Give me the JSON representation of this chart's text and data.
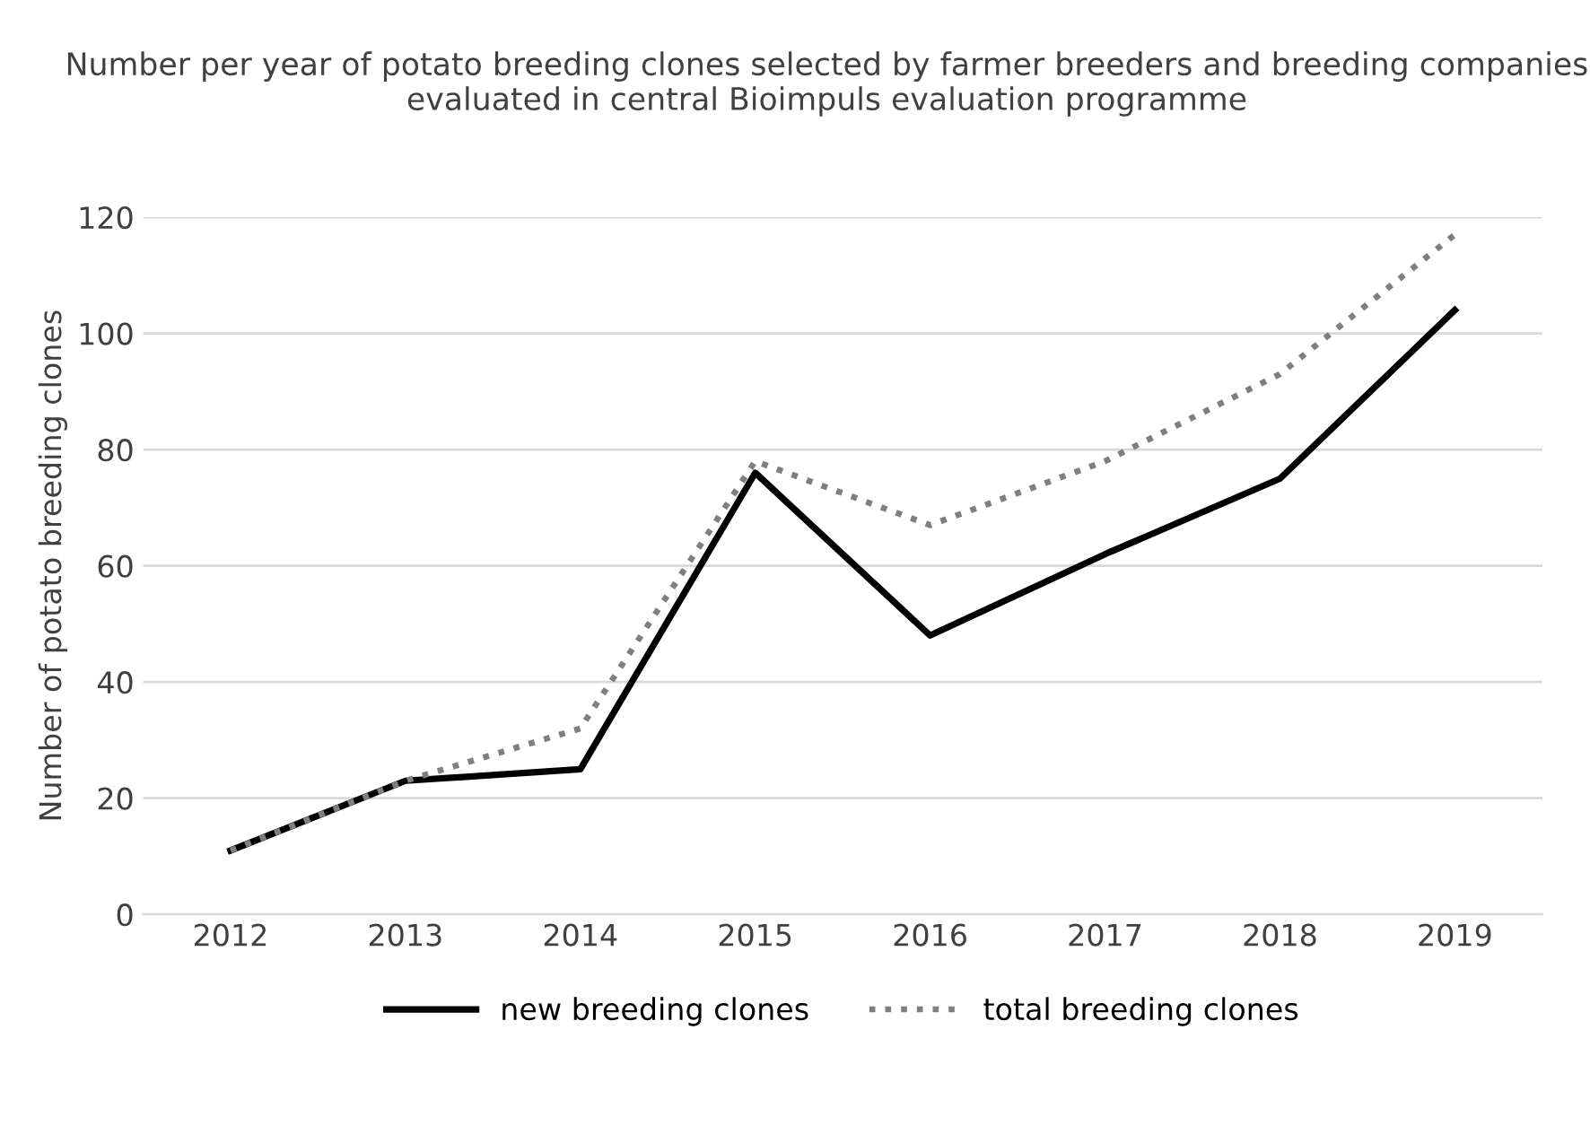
{
  "chart_data": {
    "type": "line",
    "title": "Number per year of potato breeding clones selected by farmer breeders and breeding companies evaluated in central Bioimpuls evaluation programme",
    "ylabel": "Number of potato breeding clones",
    "categories": [
      "2012",
      "2013",
      "2014",
      "2015",
      "2016",
      "2017",
      "2018",
      "2019"
    ],
    "series": [
      {
        "name": "new breeding clones",
        "color": "#000000",
        "line_style": "solid",
        "values": [
          11,
          23,
          25,
          76,
          48,
          62,
          75,
          104
        ]
      },
      {
        "name": "total breeding clones",
        "color": "#7f7f7f",
        "line_style": "dotted",
        "values": [
          11,
          23,
          32,
          78,
          67,
          78,
          93,
          117
        ]
      }
    ],
    "ylim": [
      0,
      120
    ],
    "yticks": [
      0,
      20,
      40,
      60,
      80,
      100,
      120
    ],
    "grid": "y",
    "legend": "bottom",
    "marker": "none"
  }
}
